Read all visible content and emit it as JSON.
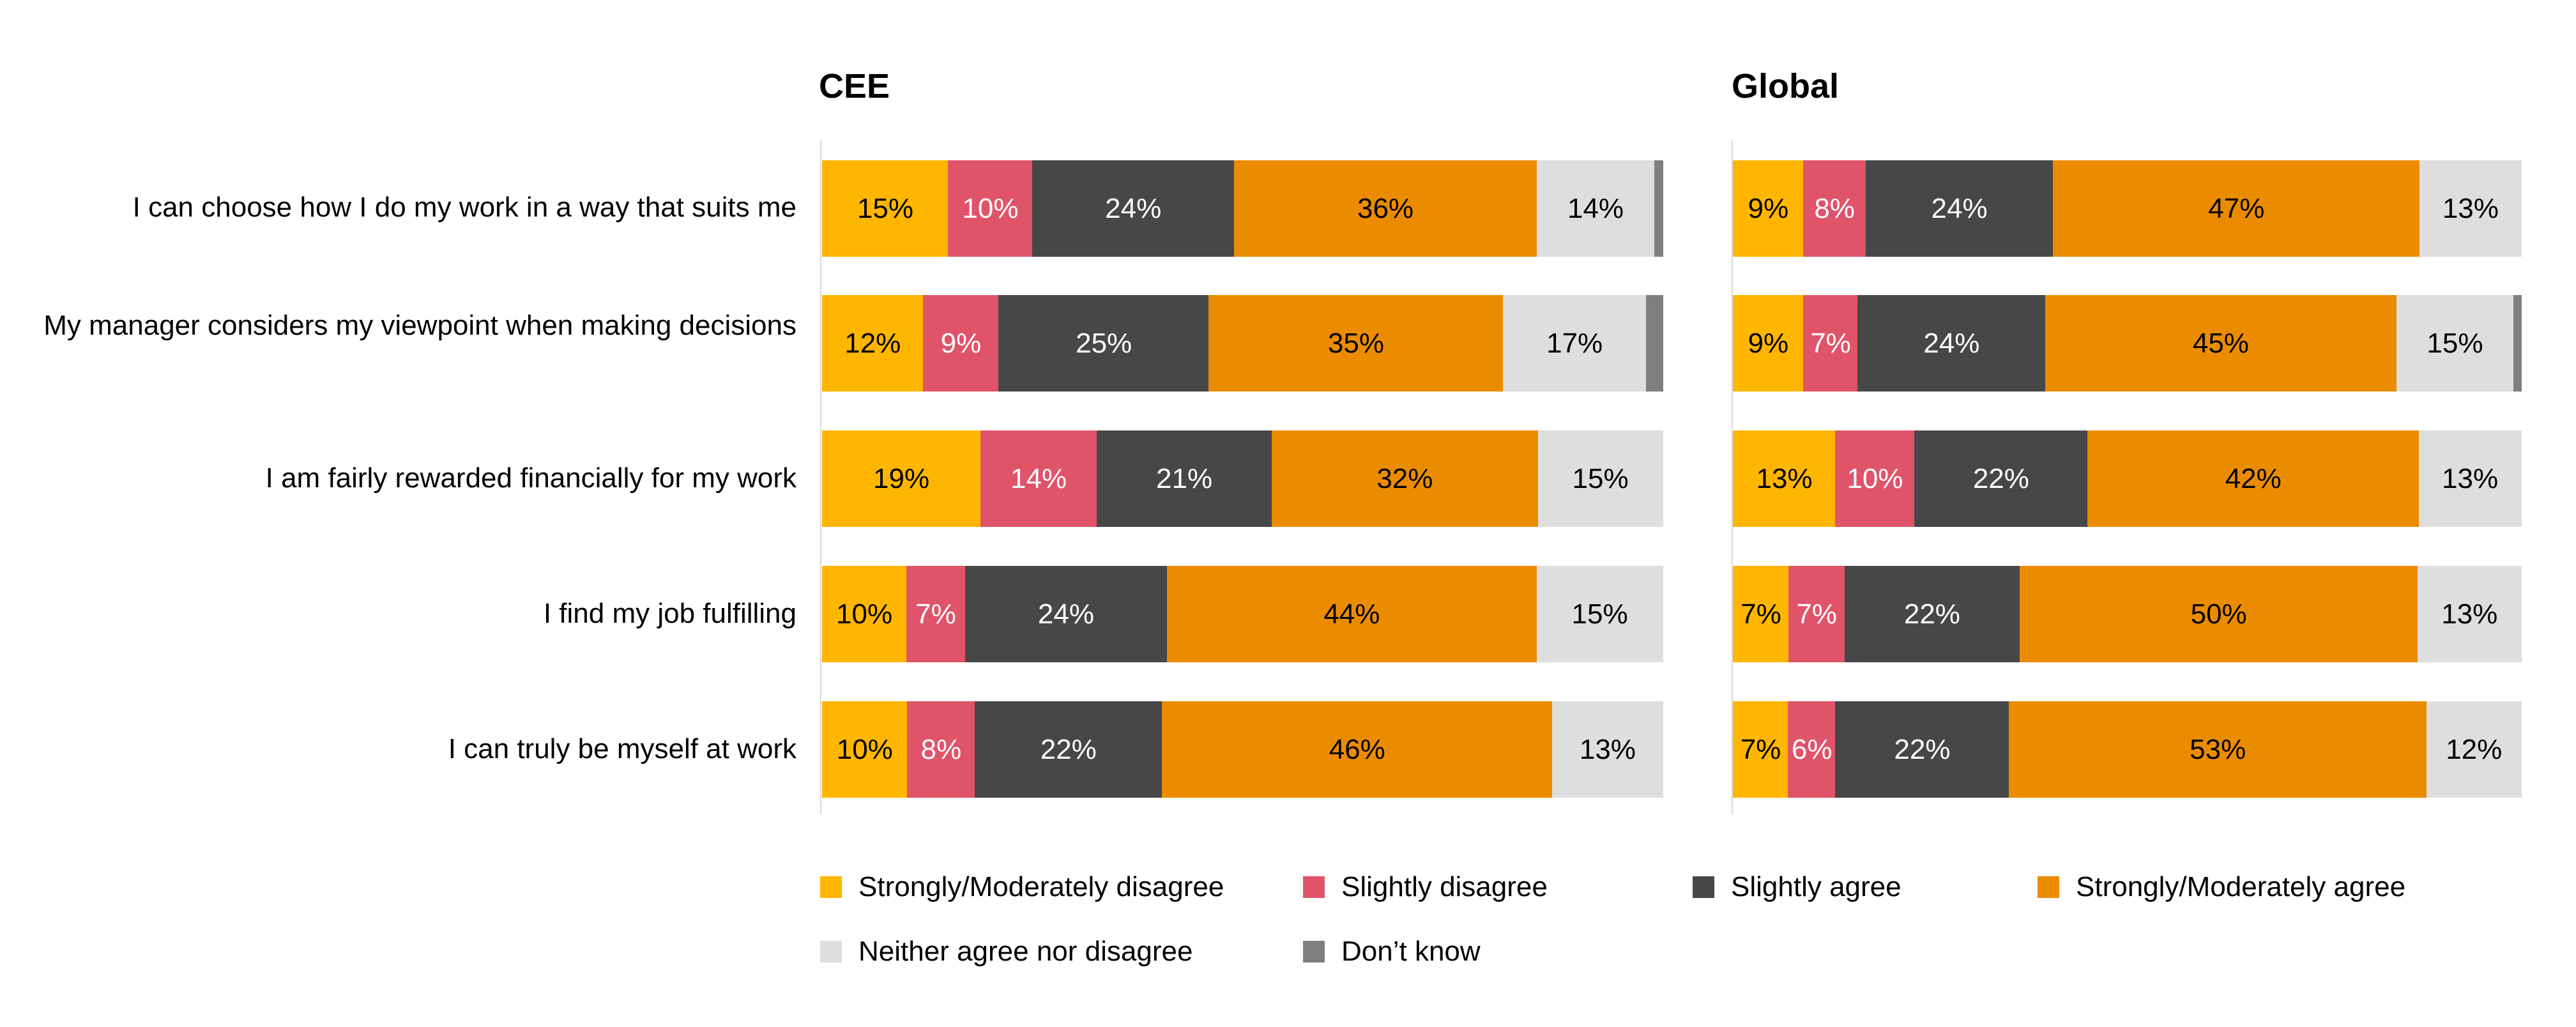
{
  "chart_data": {
    "type": "bar",
    "orientation": "horizontal",
    "stacked": true,
    "unit": "%",
    "categories": [
      "I can choose how I do my work in a way that suits me",
      "My manager considers my viewpoint when making decisions",
      "I am fairly rewarded financially for my work",
      "I find my job fulfilling",
      "I can truly be myself at work"
    ],
    "series_meta": [
      {
        "name": "Strongly/Moderately disagree",
        "color": "#FFB600",
        "text_color": "#000000"
      },
      {
        "name": "Slightly disagree",
        "color": "#E0546A",
        "text_color": "#FFFFFF"
      },
      {
        "name": "Slightly agree",
        "color": "#474747",
        "text_color": "#FFFFFF"
      },
      {
        "name": "Strongly/Moderately agree",
        "color": "#EB8C00",
        "text_color": "#000000"
      },
      {
        "name": "Neither agree nor disagree",
        "color": "#DEDEDE",
        "text_color": "#000000"
      },
      {
        "name": "Don’t know",
        "color": "#7F7F7F",
        "text_color": "#000000"
      }
    ],
    "panels": [
      {
        "title": "CEE",
        "rows": [
          {
            "values": [
              15,
              10,
              24,
              36,
              14,
              1
            ],
            "labels": [
              "15%",
              "10%",
              "24%",
              "36%",
              "14%",
              ""
            ]
          },
          {
            "values": [
              12,
              9,
              25,
              35,
              17,
              2
            ],
            "labels": [
              "12%",
              "9%",
              "25%",
              "35%",
              "17%",
              ""
            ]
          },
          {
            "values": [
              19,
              14,
              21,
              32,
              15,
              0
            ],
            "labels": [
              "19%",
              "14%",
              "21%",
              "32%",
              "15%",
              ""
            ]
          },
          {
            "values": [
              10,
              7,
              24,
              44,
              15,
              0
            ],
            "labels": [
              "10%",
              "7%",
              "24%",
              "44%",
              "15%",
              ""
            ]
          },
          {
            "values": [
              10,
              8,
              22,
              46,
              13,
              0
            ],
            "labels": [
              "10%",
              "8%",
              "22%",
              "46%",
              "13%",
              ""
            ]
          }
        ]
      },
      {
        "title": "Global",
        "rows": [
          {
            "values": [
              9,
              8,
              24,
              47,
              13,
              0
            ],
            "labels": [
              "9%",
              "8%",
              "24%",
              "47%",
              "13%",
              ""
            ]
          },
          {
            "values": [
              9,
              7,
              24,
              45,
              15,
              1
            ],
            "labels": [
              "9%",
              "7%",
              "24%",
              "45%",
              "15%",
              ""
            ]
          },
          {
            "values": [
              13,
              10,
              22,
              42,
              13,
              0
            ],
            "labels": [
              "13%",
              "10%",
              "22%",
              "42%",
              "13%",
              ""
            ]
          },
          {
            "values": [
              7,
              7,
              22,
              50,
              13,
              0
            ],
            "labels": [
              "7%",
              "7%",
              "22%",
              "50%",
              "13%",
              ""
            ]
          },
          {
            "values": [
              7,
              6,
              22,
              53,
              12,
              0
            ],
            "labels": [
              "7%",
              "6%",
              "22%",
              "53%",
              "12%",
              ""
            ]
          }
        ]
      }
    ],
    "legend": {
      "position": "bottom",
      "items": [
        "Strongly/Moderately disagree",
        "Slightly disagree",
        "Slightly agree",
        "Strongly/Moderately agree",
        "Neither agree nor disagree",
        "Don’t know"
      ]
    }
  }
}
